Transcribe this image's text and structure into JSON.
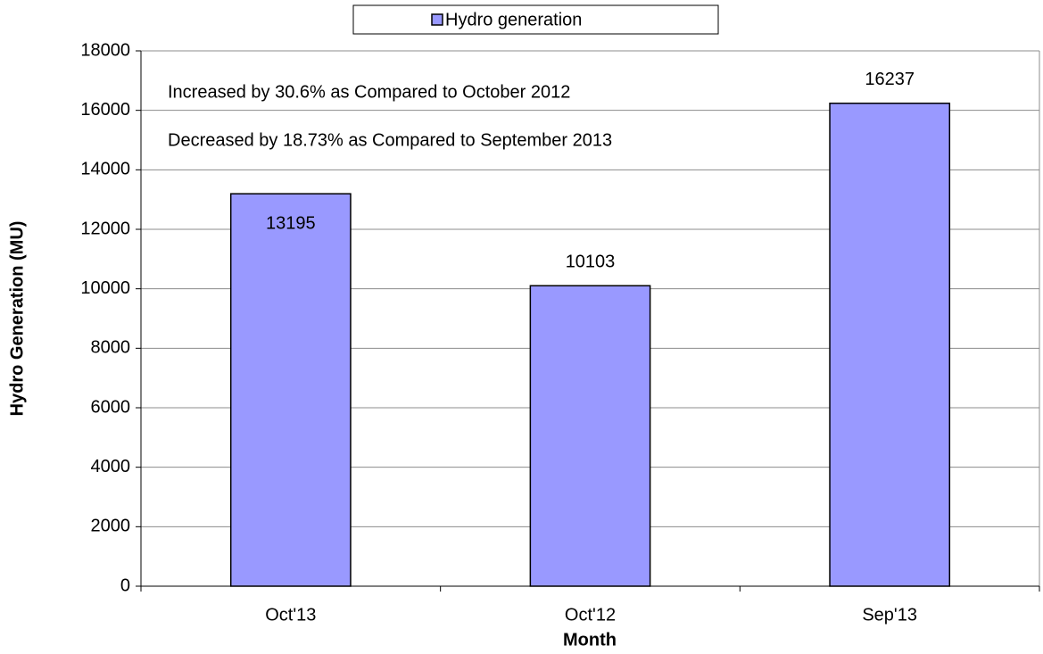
{
  "chart_data": {
    "type": "bar",
    "y_label": "Hydro Generation (MU)",
    "x_label": "Month",
    "categories": [
      "Oct'13",
      "Oct'12",
      "Sep'13"
    ],
    "series": [
      {
        "name": "Hydro generation",
        "color": "#9999ff",
        "values": [
          13195,
          10103,
          16237
        ]
      }
    ],
    "ylim": [
      0,
      18000
    ],
    "yticks": [
      0,
      2000,
      4000,
      6000,
      8000,
      10000,
      12000,
      14000,
      16000,
      18000
    ],
    "grid": true,
    "legend": "top",
    "annotations": [
      "Increased by 30.6% as Compared to October 2012",
      "Decreased by 18.73% as Compared to September 2013"
    ]
  }
}
